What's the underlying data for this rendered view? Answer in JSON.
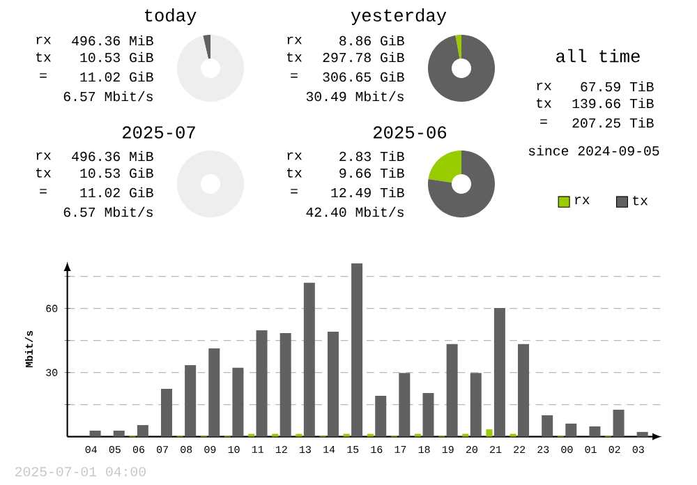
{
  "chart_data": [
    {
      "type": "donut",
      "title": "today",
      "annotations": [
        "rx",
        "496.36 MiB",
        "tx",
        "10.53 GiB",
        "=",
        "11.02 GiB",
        "6.57 Mbit/s"
      ],
      "categories": [
        null,
        null
      ],
      "values": [
        3.6,
        96.4
      ],
      "colors": [
        "#606060",
        "#eeeeee"
      ]
    },
    {
      "type": "donut",
      "title": "yesterday",
      "annotations": [
        "rx",
        "8.86 GiB",
        "tx",
        "297.78 GiB",
        "=",
        "306.65 GiB",
        "30.49 Mbit/s"
      ],
      "categories": [
        null,
        null
      ],
      "values": [
        2.9,
        97.1
      ],
      "colors": [
        "#99cc00",
        "#606060"
      ]
    },
    {
      "type": "donut",
      "title": "2025-07",
      "annotations": [
        "rx",
        "496.36 MiB",
        "tx",
        "10.53 GiB",
        "=",
        "11.02 GiB",
        "6.57 Mbit/s"
      ],
      "categories": [
        null
      ],
      "values": [
        100
      ],
      "colors": [
        "#eeeeee"
      ]
    },
    {
      "type": "donut",
      "title": "2025-06",
      "annotations": [
        "rx",
        "2.83 TiB",
        "tx",
        "9.66 TiB",
        "=",
        "12.49 TiB",
        "42.40 Mbit/s"
      ],
      "categories": [
        null,
        null
      ],
      "values": [
        22.7,
        77.3
      ],
      "colors": [
        "#99cc00",
        "#606060"
      ]
    },
    {
      "type": "other",
      "title": "all time",
      "annotations": [
        "rx",
        "67.59 TiB",
        "tx",
        "139.66 TiB",
        "=",
        "207.25 TiB",
        "since 2024-09-05"
      ]
    },
    {
      "type": "bar",
      "ylabel": "Mbit/s",
      "categories": [
        "04",
        "05",
        "06",
        "07",
        "08",
        "09",
        "10",
        "11",
        "12",
        "13",
        "14",
        "15",
        "16",
        "17",
        "18",
        "19",
        "20",
        "21",
        "22",
        "23",
        "00",
        "01",
        "02",
        "03"
      ],
      "series": [
        {
          "name": "rx",
          "color": "#99cc00",
          "values": [
            0,
            0,
            0.4,
            0,
            0.4,
            0.4,
            0.4,
            1.3,
            1.3,
            1.3,
            0.4,
            1.3,
            1.3,
            0.4,
            1.3,
            0.4,
            1.3,
            3.4,
            1.3,
            0,
            0.4,
            0,
            0.4,
            0
          ]
        },
        {
          "name": "tx",
          "color": "#616161",
          "values": [
            2.8,
            2.8,
            5.4,
            22.4,
            33.5,
            41.3,
            32.2,
            49.8,
            48.5,
            72.0,
            49.1,
            81.1,
            19.1,
            29.8,
            20.4,
            43.3,
            29.8,
            60.2,
            43.3,
            10.0,
            6.1,
            4.8,
            12.6,
            2.2
          ]
        }
      ],
      "ylim": [
        0,
        82
      ],
      "yticks": [
        {
          "value": 15,
          "label": null
        },
        30,
        {
          "value": 45,
          "label": null
        },
        60,
        {
          "value": 75,
          "label": null
        }
      ],
      "grid": "y",
      "legend": "top right",
      "annotations": [
        "2025-07-01 04:00"
      ]
    }
  ]
}
